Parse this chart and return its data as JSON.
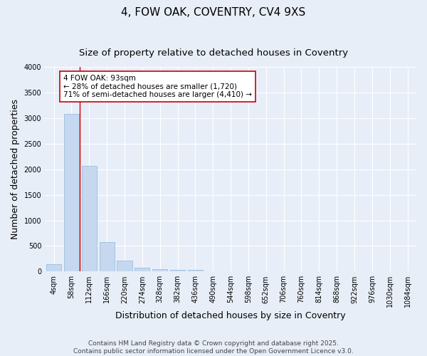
{
  "title": "4, FOW OAK, COVENTRY, CV4 9XS",
  "subtitle": "Size of property relative to detached houses in Coventry",
  "xlabel": "Distribution of detached houses by size in Coventry",
  "ylabel": "Number of detached properties",
  "categories": [
    "4sqm",
    "58sqm",
    "112sqm",
    "166sqm",
    "220sqm",
    "274sqm",
    "328sqm",
    "382sqm",
    "436sqm",
    "490sqm",
    "544sqm",
    "598sqm",
    "652sqm",
    "706sqm",
    "760sqm",
    "814sqm",
    "868sqm",
    "922sqm",
    "976sqm",
    "1030sqm",
    "1084sqm"
  ],
  "values": [
    150,
    3080,
    2070,
    580,
    210,
    80,
    40,
    35,
    35,
    0,
    0,
    0,
    0,
    0,
    0,
    0,
    0,
    0,
    0,
    0,
    0
  ],
  "bar_color": "#c5d8f0",
  "bar_edge_color": "#8db8d8",
  "vline_color": "#cc0000",
  "vline_x": 1.48,
  "annotation_text": "4 FOW OAK: 93sqm\n← 28% of detached houses are smaller (1,720)\n71% of semi-detached houses are larger (4,410) →",
  "annotation_box_color": "#cc0000",
  "ylim": [
    0,
    4000
  ],
  "yticks": [
    0,
    500,
    1000,
    1500,
    2000,
    2500,
    3000,
    3500,
    4000
  ],
  "footer_line1": "Contains HM Land Registry data © Crown copyright and database right 2025.",
  "footer_line2": "Contains public sector information licensed under the Open Government Licence v3.0.",
  "bg_color": "#e8eef8",
  "plot_bg_color": "#e8eef8",
  "title_fontsize": 11,
  "subtitle_fontsize": 9.5,
  "axis_label_fontsize": 9,
  "tick_fontsize": 7,
  "footer_fontsize": 6.5,
  "ann_fontsize": 7.5
}
